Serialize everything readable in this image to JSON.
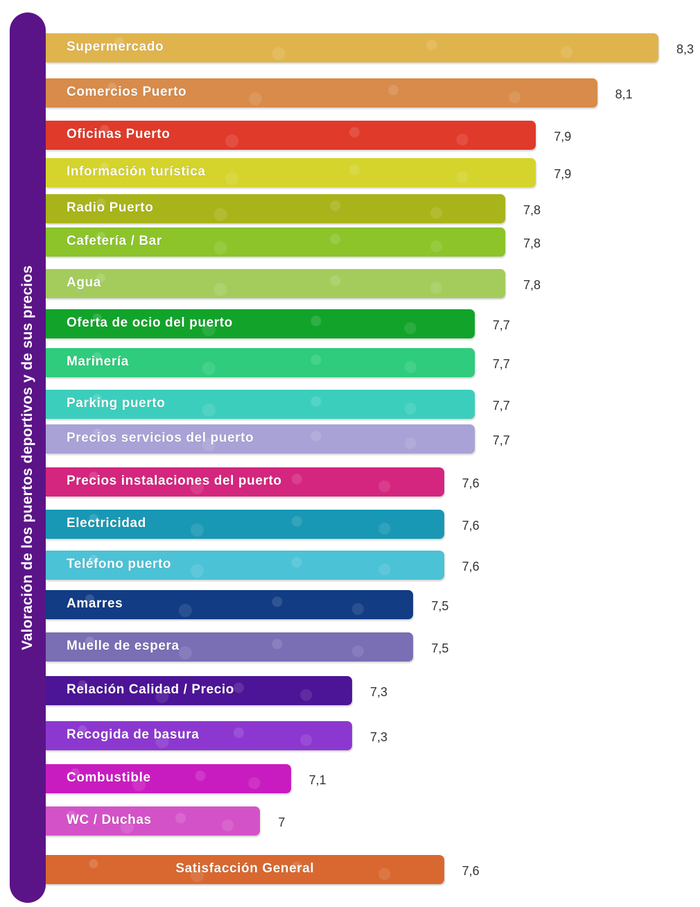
{
  "chart_data": {
    "type": "bar",
    "orientation": "horizontal",
    "ylabel": "Valoración de los puertos deportivos y de sus precios",
    "categories": [
      "Supermercado",
      "Comercios Puerto",
      "Oficinas Puerto",
      "Información turística",
      "Radio Puerto",
      "Cafetería / Bar",
      "Agua",
      "Oferta de ocio del puerto",
      "Marinería",
      "Parking puerto",
      "Precios servicios del puerto",
      "Precios instalaciones del puerto",
      "Electricidad",
      "Teléfono puerto",
      "Amarres",
      "Muelle de espera",
      "Relación Calidad / Precio",
      "Recogida de basura",
      "Combustible",
      "WC / Duchas",
      "Satisfacción General"
    ],
    "values": [
      8.3,
      8.1,
      7.9,
      7.9,
      7.8,
      7.8,
      7.8,
      7.7,
      7.7,
      7.7,
      7.7,
      7.6,
      7.6,
      7.6,
      7.5,
      7.5,
      7.3,
      7.3,
      7.1,
      7,
      7.6
    ],
    "value_labels": [
      "8,3",
      "8,1",
      "7,9",
      "7,9",
      "7,8",
      "7,8",
      "7,8",
      "7,7",
      "7,7",
      "7,7",
      "7,7",
      "7,6",
      "7,6",
      "7,6",
      "7,5",
      "7,5",
      "7,3",
      "7,3",
      "7,1",
      "7",
      "7,6"
    ],
    "colors": [
      "#e0b44c",
      "#d88b4a",
      "#e03a2a",
      "#d4d42c",
      "#a8b41a",
      "#8cc42a",
      "#a4cc5c",
      "#12a42a",
      "#2ecc7c",
      "#3ccebc",
      "#a8a2d6",
      "#d4267e",
      "#1898b4",
      "#4cc2d6",
      "#123c84",
      "#7a6eb4",
      "#4c1496",
      "#8c38d0",
      "#c81cc0",
      "#d452c8",
      "#d86830"
    ],
    "xlim": [
      6.3,
      8.3
    ],
    "grid": false,
    "legend": "none"
  }
}
